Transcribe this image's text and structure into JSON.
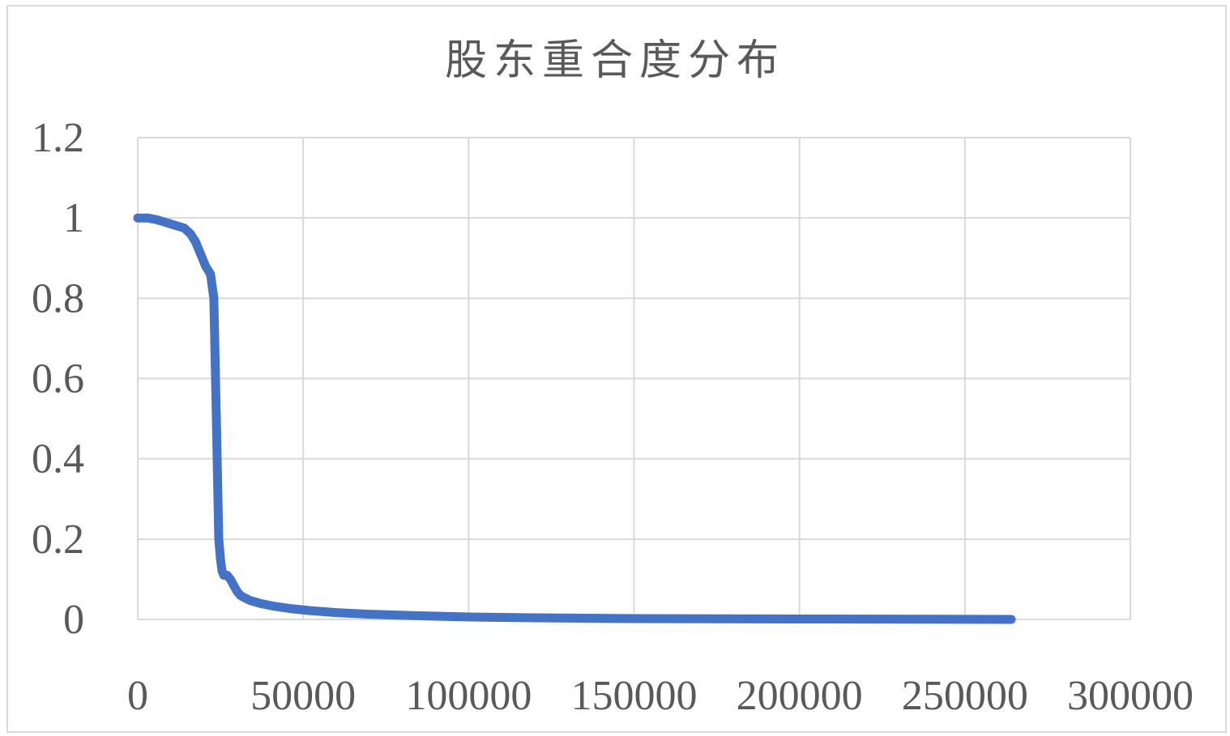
{
  "chart_data": {
    "type": "line",
    "title": "股东重合度分布",
    "xlabel": "",
    "ylabel": "",
    "xlim": [
      0,
      300000
    ],
    "ylim": [
      0,
      1.2
    ],
    "xticks": [
      0,
      50000,
      100000,
      150000,
      200000,
      250000,
      300000
    ],
    "yticks": [
      0,
      0.2,
      0.4,
      0.6,
      0.8,
      1,
      1.2
    ],
    "xtick_labels": [
      "0",
      "50000",
      "100000",
      "150000",
      "200000",
      "250000",
      "300000"
    ],
    "ytick_labels": [
      "0",
      "0.2",
      "0.4",
      "0.6",
      "0.8",
      "1",
      "1.2"
    ],
    "grid": true,
    "legend": "none",
    "series_color": "#4472c4",
    "grid_color": "#d9d9d9",
    "series": [
      {
        "x": [
          0,
          3000,
          6000,
          10000,
          14000,
          16000,
          17500,
          19000,
          20500,
          22000,
          23000,
          23500,
          24000,
          24500,
          25000,
          25500,
          26000,
          27000,
          28000,
          29000,
          30000,
          31000,
          32000,
          34000,
          37000,
          41000,
          46000,
          52000,
          60000,
          70000,
          85000,
          100000,
          120000,
          150000,
          200000,
          264000
        ],
        "y": [
          1.0,
          1.0,
          0.995,
          0.985,
          0.975,
          0.96,
          0.94,
          0.91,
          0.88,
          0.86,
          0.8,
          0.6,
          0.4,
          0.2,
          0.15,
          0.12,
          0.11,
          0.11,
          0.1,
          0.085,
          0.07,
          0.06,
          0.055,
          0.047,
          0.04,
          0.033,
          0.027,
          0.022,
          0.017,
          0.013,
          0.009,
          0.006,
          0.004,
          0.002,
          0.001,
          0.0
        ]
      }
    ]
  }
}
